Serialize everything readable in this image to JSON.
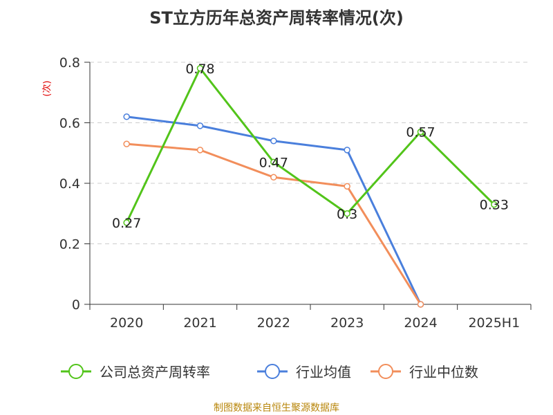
{
  "chart_data": {
    "type": "line",
    "title": "ST立方历年总资产周转率情况(次)",
    "ylabel": "(次)",
    "xlabel": "",
    "categories": [
      "2020",
      "2021",
      "2022",
      "2023",
      "2024",
      "2025H1"
    ],
    "ylim": [
      0,
      0.8
    ],
    "yticks": [
      0,
      0.2,
      0.4,
      0.6,
      0.8
    ],
    "ytick_labels": [
      "0",
      "0.2",
      "0.4",
      "0.6",
      "0.8"
    ],
    "grid": true,
    "legend_position": "bottom",
    "series": [
      {
        "name": "公司总资产周转率",
        "color": "#52c41a",
        "values": [
          0.27,
          0.78,
          0.47,
          0.3,
          0.57,
          0.33
        ],
        "labels": [
          "0.27",
          "0.78",
          "0.47",
          "0.3",
          "0.57",
          "0.33"
        ]
      },
      {
        "name": "行业均值",
        "color": "#4a7fdc",
        "values": [
          0.62,
          0.59,
          0.54,
          0.51,
          0.0,
          null
        ]
      },
      {
        "name": "行业中位数",
        "color": "#f28e5b",
        "values": [
          0.53,
          0.51,
          0.42,
          0.39,
          0.0,
          null
        ]
      }
    ]
  },
  "source": "制图数据来自恒生聚源数据库"
}
